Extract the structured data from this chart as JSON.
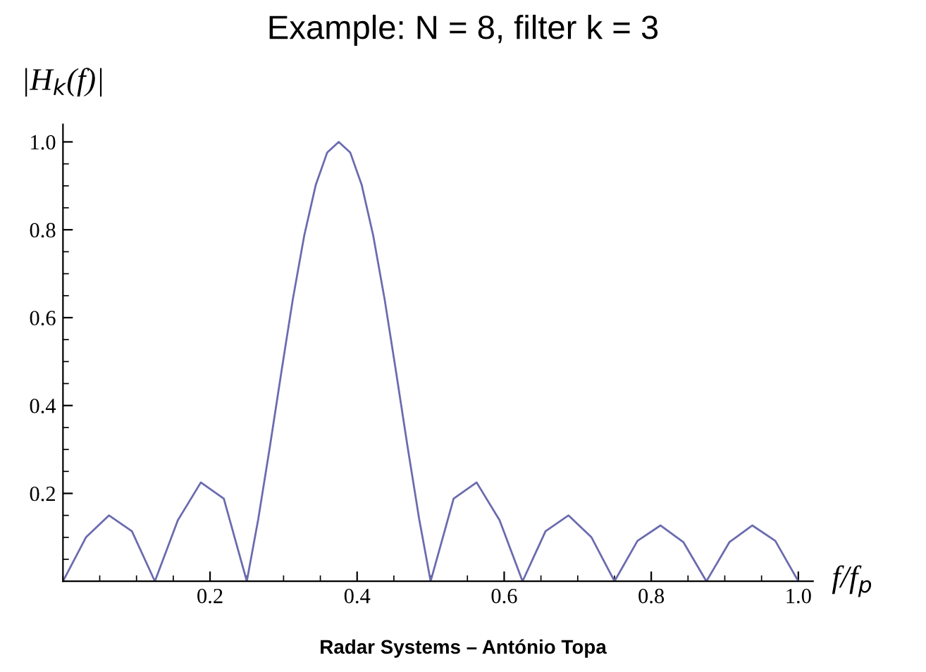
{
  "chart_data": {
    "type": "line",
    "title": "Example: N = 8, filter k = 3",
    "xlabel": "f/f$_{p}$",
    "ylabel": "|H$_{k}$(f)|",
    "x": [
      0,
      0.03125,
      0.0625,
      0.09375,
      0.125,
      0.15625,
      0.1875,
      0.21875,
      0.25,
      0.265625,
      0.28125,
      0.296875,
      0.3125,
      0.328125,
      0.34375,
      0.359375,
      0.375,
      0.390625,
      0.40625,
      0.421875,
      0.4375,
      0.453125,
      0.46875,
      0.484375,
      0.5,
      0.53125,
      0.5625,
      0.59375,
      0.625,
      0.65625,
      0.6875,
      0.71875,
      0.75,
      0.78125,
      0.8125,
      0.84375,
      0.875,
      0.90625,
      0.9375,
      0.96875,
      1.0
    ],
    "series": [
      {
        "color": "#6b6bb0",
        "values": [
          0,
          0.1,
          0.15,
          0.114,
          0,
          0.139,
          0.225,
          0.188,
          0,
          0.142,
          0.305,
          0.475,
          0.641,
          0.787,
          0.902,
          0.976,
          1.0,
          0.976,
          0.902,
          0.787,
          0.641,
          0.475,
          0.305,
          0.142,
          0,
          0.188,
          0.225,
          0.139,
          0,
          0.114,
          0.15,
          0.1,
          0,
          0.092,
          0.127,
          0.089,
          0,
          0.089,
          0.127,
          0.092,
          0
        ]
      }
    ],
    "xlim": [
      0,
      1.02
    ],
    "ylim": [
      0,
      1.04
    ],
    "xticks": [
      0.2,
      0.4,
      0.6,
      0.8,
      {
        "value": 1.0,
        "label": "1.0"
      }
    ],
    "yticks": [
      0.2,
      0.4,
      0.6,
      0.8,
      {
        "value": 1.0,
        "label": "1.0"
      }
    ],
    "grid": false,
    "legend": false,
    "marker": "none",
    "line_style": "solid",
    "annotations": [
      "Radar Systems – António Topa"
    ]
  }
}
